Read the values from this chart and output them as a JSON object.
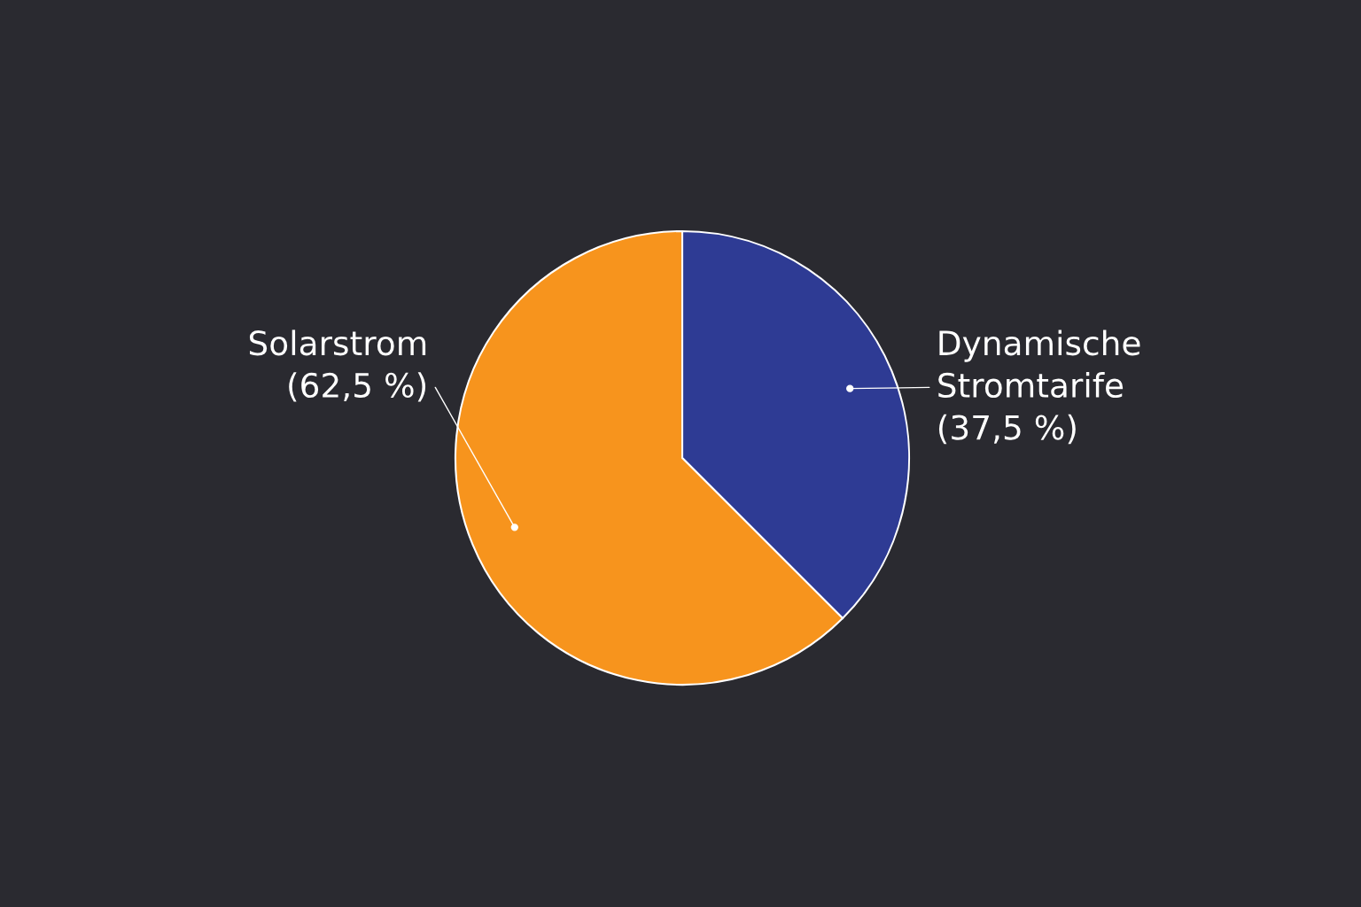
{
  "chart_data": {
    "type": "pie",
    "categories": [
      "Dynamische Stromtarife",
      "Solarstrom"
    ],
    "values": [
      37.5,
      62.5
    ],
    "colors": [
      "#2e3b94",
      "#f7941d"
    ],
    "value_labels": [
      "(37,5 %)",
      "(62,5 %)"
    ]
  }
}
